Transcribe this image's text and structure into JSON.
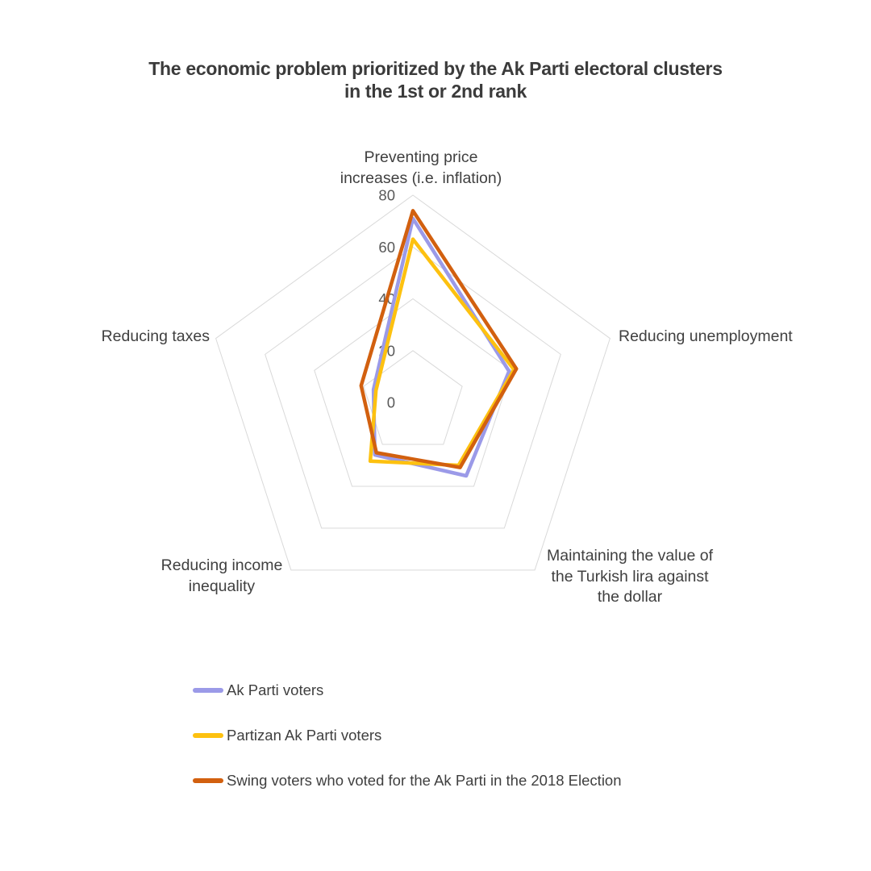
{
  "title": "The economic problem prioritized by the Ak Parti electoral clusters\nin the 1st or 2nd rank",
  "chart_data": {
    "type": "radar",
    "rmax": 80,
    "ticks": [
      0,
      20,
      40,
      60,
      80
    ],
    "grid": "pentagon-rings",
    "grid_color": "#d9d9d9",
    "tick_color": "#595959",
    "label_color": "#404040",
    "title_color": "#3b3b3b",
    "legend_position": "bottom-left",
    "categories": [
      "Preventing price\nincreases (i.e. inflation)",
      "Reducing unemployment",
      "Maintaining the value of\nthe Turkish lira against\nthe dollar",
      "Reducing income\ninequality",
      "Reducing taxes"
    ],
    "series": [
      {
        "name": "Ak Parti voters",
        "color": "#9b9ae8",
        "values": [
          71,
          39,
          35,
          25,
          16
        ]
      },
      {
        "name": "Partizan Ak Parti voters",
        "color": "#fdc110",
        "values": [
          63,
          41,
          30,
          28,
          15
        ]
      },
      {
        "name": "Swing voters who voted for the Ak Parti in the 2018 Election",
        "color": "#d2600f",
        "values": [
          74,
          42,
          31,
          24,
          21
        ]
      }
    ]
  }
}
